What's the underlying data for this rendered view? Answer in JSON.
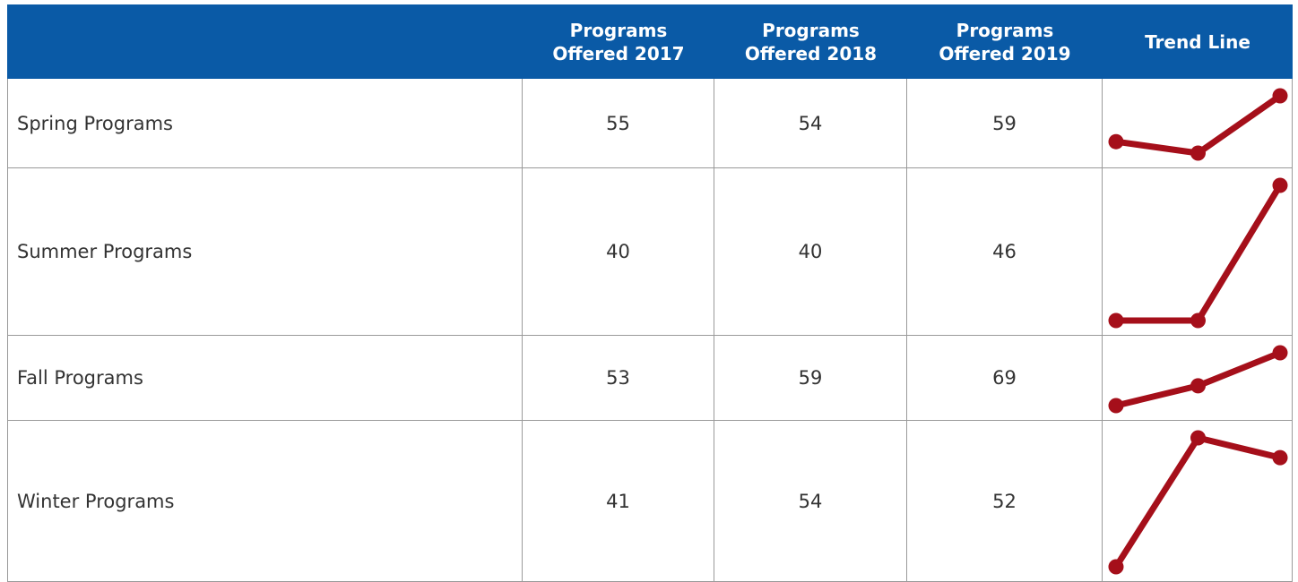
{
  "table": {
    "columns": [
      "Programs Offered 2017",
      "Programs Offered 2018",
      "Programs Offered 2019",
      "Trend Line"
    ],
    "rows": [
      {
        "label": "Spring Programs",
        "values": [
          55,
          54,
          59
        ]
      },
      {
        "label": "Summer Programs",
        "values": [
          40,
          40,
          46
        ]
      },
      {
        "label": "Fall Programs",
        "values": [
          53,
          59,
          69
        ]
      },
      {
        "label": "Winter Programs",
        "values": [
          41,
          54,
          52
        ]
      }
    ],
    "trend_color": "#a50f1a"
  }
}
